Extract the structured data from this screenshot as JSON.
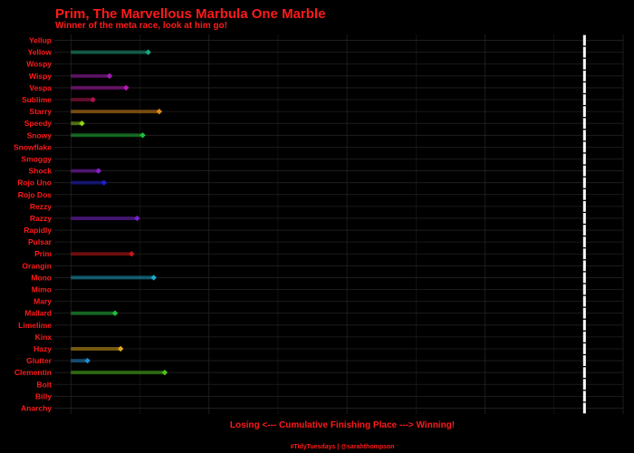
{
  "chart_data": {
    "type": "dumbbell",
    "title": "Prim, The Marvellous Marbula One Marble",
    "subtitle": "Winner of the meta race, look at him go!",
    "xlabel": "Losing <--- Cumulative Finishing Place ---> Winning!",
    "ylabel": "",
    "caption": "#TidyTuesdays | @sarahthompson",
    "grid": true,
    "legend": "none",
    "colors": {
      "background": "#000000",
      "text": "#ff1a1a",
      "grid": "#222222",
      "finish_marker": "#ffffff"
    },
    "x_start": 0,
    "xlim": [
      -3,
      100
    ],
    "finish_x": 93,
    "categories": [
      "Yellup",
      "Yellow",
      "Wospy",
      "Wispy",
      "Vespa",
      "Sublime",
      "Starry",
      "Speedy",
      "Snowy",
      "Snowflake",
      "Smoggy",
      "Shock",
      "Rojo Uno",
      "Rojo Dos",
      "Rezzy",
      "Razzy",
      "Rapidly",
      "Pulsar",
      "Prim",
      "Orangin",
      "Mono",
      "Mimo",
      "Mary",
      "Mallard",
      "Limelime",
      "Kinx",
      "Hazy",
      "Glutter",
      "Clementin",
      "Bolt",
      "Billy",
      "Anarchy"
    ],
    "series": [
      {
        "values": [
          null,
          14,
          null,
          7,
          10,
          4,
          16,
          2,
          13,
          null,
          null,
          5,
          6,
          null,
          null,
          12,
          null,
          null,
          11,
          null,
          15,
          null,
          null,
          8,
          null,
          null,
          9,
          3,
          17,
          null,
          null,
          null
        ],
        "colors": [
          "#000000",
          "#1aa67f",
          "#000000",
          "#a31bb3",
          "#b31ab3",
          "#b3124f",
          "#e08a17",
          "#8fd41c",
          "#1fbf3a",
          "#000000",
          "#000000",
          "#8b1fc9",
          "#1f1fcf",
          "#000000",
          "#000000",
          "#7a1fd1",
          "#000000",
          "#000000",
          "#cf1414",
          "#000000",
          "#1aa8c9",
          "#000000",
          "#000000",
          "#1fbf3a",
          "#000000",
          "#000000",
          "#e0a81c",
          "#1f8ad1",
          "#4fbf1c",
          "#000000",
          "#000000",
          "#000000"
        ]
      }
    ]
  }
}
